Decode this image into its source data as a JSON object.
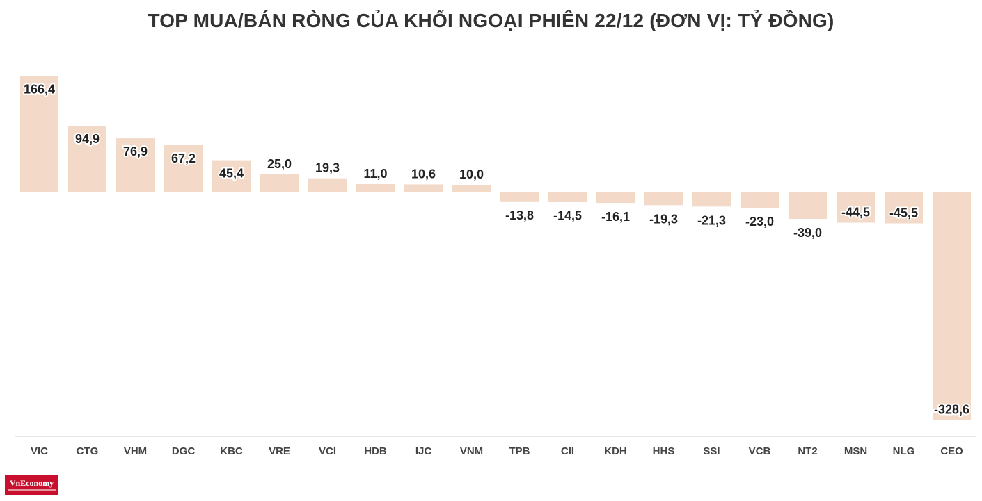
{
  "colors": {
    "bar": "#f2d9c8",
    "axis": "#cccccc",
    "logo": "#c8102e"
  },
  "logo": {
    "text": "VnEconomy"
  },
  "chart_data": {
    "type": "bar",
    "title": "TOP MUA/BÁN RÒNG CỦA KHỐI NGOẠI PHIÊN 22/12 (ĐƠN VỊ: TỶ ĐỒNG)",
    "categories": [
      "VIC",
      "CTG",
      "VHM",
      "DGC",
      "KBC",
      "VRE",
      "VCI",
      "HDB",
      "IJC",
      "VNM",
      "TPB",
      "CII",
      "KDH",
      "HHS",
      "SSI",
      "VCB",
      "NT2",
      "MSN",
      "NLG",
      "CEO"
    ],
    "values": [
      166.4,
      94.9,
      76.9,
      67.2,
      45.4,
      25.0,
      19.3,
      11.0,
      10.6,
      10.0,
      -13.8,
      -14.5,
      -16.1,
      -19.3,
      -21.3,
      -23.0,
      -39.0,
      -44.5,
      -45.5,
      -328.6
    ],
    "value_labels": [
      "166,4",
      "94,9",
      "76,9",
      "67,2",
      "45,4",
      "25,0",
      "19,3",
      "11,0",
      "10,6",
      "10,0",
      "-13,8",
      "-14,5",
      "-16,1",
      "-19,3",
      "-21,3",
      "-23,0",
      "-39,0",
      "-44,5",
      "-45,5",
      "-328,6"
    ],
    "xlabel": "",
    "ylabel": "",
    "ylim": [
      -330,
      168
    ],
    "grid": false,
    "legend": "none"
  }
}
